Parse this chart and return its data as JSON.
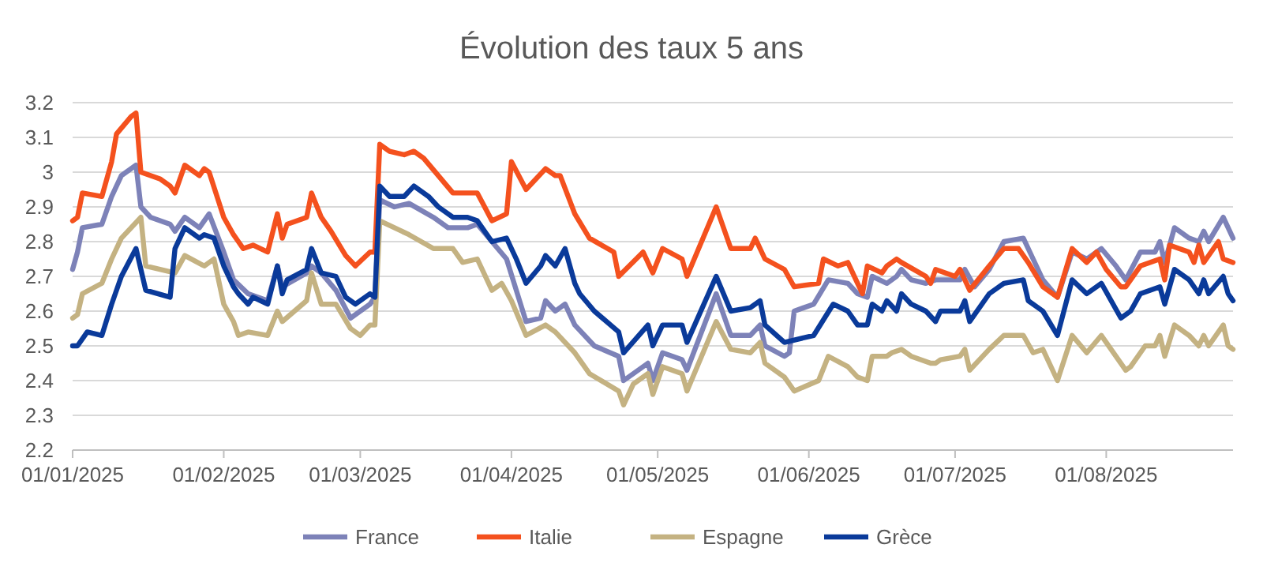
{
  "chart_data": {
    "type": "line",
    "title": "Évolution des taux 5 ans",
    "xlim": [
      "2025-01-01",
      "2025-08-27"
    ],
    "xticks": [
      {
        "value": "2025-01-01",
        "label": "01/01/2025"
      },
      {
        "value": "2025-02-01",
        "label": "01/02/2025"
      },
      {
        "value": "2025-03-01",
        "label": "01/03/2025"
      },
      {
        "value": "2025-04-01",
        "label": "01/04/2025"
      },
      {
        "value": "2025-05-01",
        "label": "01/05/2025"
      },
      {
        "value": "2025-06-01",
        "label": "01/06/2025"
      },
      {
        "value": "2025-07-01",
        "label": "01/07/2025"
      },
      {
        "value": "2025-08-01",
        "label": "01/08/2025"
      }
    ],
    "ylim": [
      2.2,
      3.2
    ],
    "yticks": [
      {
        "value": 2.2,
        "label": "2.2"
      },
      {
        "value": 2.3,
        "label": "2.3"
      },
      {
        "value": 2.4,
        "label": "2.4"
      },
      {
        "value": 2.5,
        "label": "2.5"
      },
      {
        "value": 2.6,
        "label": "2.6"
      },
      {
        "value": 2.7,
        "label": "2.7"
      },
      {
        "value": 2.8,
        "label": "2.8"
      },
      {
        "value": 2.9,
        "label": "2.9"
      },
      {
        "value": 3,
        "label": "3"
      },
      {
        "value": 3.1,
        "label": "3.1"
      },
      {
        "value": 3.2,
        "label": "3.2"
      }
    ],
    "grid": "y",
    "legend": "bottom",
    "marker": "none",
    "line_style": "solid",
    "series": [
      {
        "name": "France",
        "color": "#7d82b8",
        "x": [
          "2025-01-01",
          "2025-01-02",
          "2025-01-03",
          "2025-01-07",
          "2025-01-09",
          "2025-01-11",
          "2025-01-14",
          "2025-01-15",
          "2025-01-17",
          "2025-01-21",
          "2025-01-22",
          "2025-01-24",
          "2025-01-27",
          "2025-01-29",
          "2025-02-01",
          "2025-02-03",
          "2025-02-06",
          "2025-02-10",
          "2025-02-12",
          "2025-02-13",
          "2025-02-18",
          "2025-02-19",
          "2025-02-21",
          "2025-02-24",
          "2025-02-27",
          "2025-03-03",
          "2025-03-04",
          "2025-03-05",
          "2025-03-08",
          "2025-03-11",
          "2025-03-16",
          "2025-03-19",
          "2025-03-23",
          "2025-03-25",
          "2025-03-28",
          "2025-03-31",
          "2025-04-02",
          "2025-04-04",
          "2025-04-07",
          "2025-04-08",
          "2025-04-10",
          "2025-04-12",
          "2025-04-14",
          "2025-04-18",
          "2025-04-23",
          "2025-04-24",
          "2025-04-29",
          "2025-04-30",
          "2025-05-02",
          "2025-05-06",
          "2025-05-07",
          "2025-05-13",
          "2025-05-16",
          "2025-05-20",
          "2025-05-22",
          "2025-05-23",
          "2025-05-27",
          "2025-05-28",
          "2025-05-29",
          "2025-06-02",
          "2025-06-05",
          "2025-06-09",
          "2025-06-11",
          "2025-06-13",
          "2025-06-14",
          "2025-06-17",
          "2025-06-19",
          "2025-06-20",
          "2025-06-22",
          "2025-06-25",
          "2025-06-27",
          "2025-07-02",
          "2025-07-03",
          "2025-07-05",
          "2025-07-08",
          "2025-07-11",
          "2025-07-15",
          "2025-07-17",
          "2025-07-19",
          "2025-07-22",
          "2025-07-25",
          "2025-07-28",
          "2025-07-31",
          "2025-08-03",
          "2025-08-05",
          "2025-08-08",
          "2025-08-11",
          "2025-08-12",
          "2025-08-13",
          "2025-08-15",
          "2025-08-18",
          "2025-08-20",
          "2025-08-21",
          "2025-08-22",
          "2025-08-25",
          "2025-08-26",
          "2025-08-27"
        ],
        "values": [
          2.72,
          2.77,
          2.84,
          2.85,
          2.93,
          2.99,
          3.02,
          2.9,
          2.87,
          2.85,
          2.83,
          2.87,
          2.84,
          2.88,
          2.77,
          2.69,
          2.65,
          2.63,
          2.73,
          2.67,
          2.71,
          2.73,
          2.71,
          2.66,
          2.58,
          2.62,
          2.64,
          2.92,
          2.9,
          2.91,
          2.87,
          2.84,
          2.84,
          2.85,
          2.8,
          2.75,
          2.66,
          2.57,
          2.58,
          2.63,
          2.6,
          2.62,
          2.56,
          2.5,
          2.47,
          2.4,
          2.45,
          2.4,
          2.48,
          2.46,
          2.43,
          2.65,
          2.53,
          2.53,
          2.56,
          2.5,
          2.47,
          2.48,
          2.6,
          2.62,
          2.69,
          2.68,
          2.65,
          2.64,
          2.7,
          2.68,
          2.7,
          2.72,
          2.69,
          2.68,
          2.69,
          2.69,
          2.72,
          2.67,
          2.72,
          2.8,
          2.81,
          2.75,
          2.69,
          2.64,
          2.77,
          2.75,
          2.78,
          2.73,
          2.69,
          2.77,
          2.77,
          2.8,
          2.74,
          2.84,
          2.81,
          2.8,
          2.83,
          2.8,
          2.87,
          2.84,
          2.81
        ]
      },
      {
        "name": "Italie",
        "color": "#f4511e",
        "x": [
          "2025-01-01",
          "2025-01-02",
          "2025-01-03",
          "2025-01-07",
          "2025-01-09",
          "2025-01-10",
          "2025-01-13",
          "2025-01-14",
          "2025-01-15",
          "2025-01-19",
          "2025-01-21",
          "2025-01-22",
          "2025-01-24",
          "2025-01-27",
          "2025-01-28",
          "2025-01-29",
          "2025-02-01",
          "2025-02-03",
          "2025-02-04",
          "2025-02-05",
          "2025-02-07",
          "2025-02-10",
          "2025-02-12",
          "2025-02-13",
          "2025-02-14",
          "2025-02-18",
          "2025-02-19",
          "2025-02-21",
          "2025-02-23",
          "2025-02-26",
          "2025-02-28",
          "2025-03-03",
          "2025-03-04",
          "2025-03-05",
          "2025-03-07",
          "2025-03-10",
          "2025-03-12",
          "2025-03-14",
          "2025-03-17",
          "2025-03-20",
          "2025-03-25",
          "2025-03-28",
          "2025-03-31",
          "2025-04-01",
          "2025-04-04",
          "2025-04-08",
          "2025-04-10",
          "2025-04-11",
          "2025-04-14",
          "2025-04-17",
          "2025-04-22",
          "2025-04-23",
          "2025-04-28",
          "2025-04-30",
          "2025-05-02",
          "2025-05-06",
          "2025-05-07",
          "2025-05-13",
          "2025-05-16",
          "2025-05-20",
          "2025-05-21",
          "2025-05-23",
          "2025-05-27",
          "2025-05-29",
          "2025-06-03",
          "2025-06-04",
          "2025-06-07",
          "2025-06-09",
          "2025-06-11",
          "2025-06-12",
          "2025-06-13",
          "2025-06-16",
          "2025-06-17",
          "2025-06-19",
          "2025-06-20",
          "2025-06-25",
          "2025-06-26",
          "2025-06-27",
          "2025-07-01",
          "2025-07-02",
          "2025-07-04",
          "2025-07-08",
          "2025-07-11",
          "2025-07-14",
          "2025-07-16",
          "2025-07-19",
          "2025-07-22",
          "2025-07-25",
          "2025-07-28",
          "2025-07-30",
          "2025-08-01",
          "2025-08-04",
          "2025-08-05",
          "2025-08-08",
          "2025-08-12",
          "2025-08-13",
          "2025-08-14",
          "2025-08-18",
          "2025-08-19",
          "2025-08-20",
          "2025-08-21",
          "2025-08-24",
          "2025-08-25",
          "2025-08-27"
        ],
        "values": [
          2.86,
          2.87,
          2.94,
          2.93,
          3.03,
          3.11,
          3.16,
          3.17,
          3.0,
          2.98,
          2.96,
          2.94,
          3.02,
          2.99,
          3.01,
          3.0,
          2.87,
          2.82,
          2.8,
          2.78,
          2.79,
          2.77,
          2.88,
          2.81,
          2.85,
          2.87,
          2.94,
          2.87,
          2.83,
          2.76,
          2.73,
          2.77,
          2.77,
          3.08,
          3.06,
          3.05,
          3.06,
          3.04,
          2.99,
          2.94,
          2.94,
          2.86,
          2.88,
          3.03,
          2.95,
          3.01,
          2.99,
          2.99,
          2.88,
          2.81,
          2.77,
          2.7,
          2.77,
          2.71,
          2.78,
          2.75,
          2.7,
          2.9,
          2.78,
          2.78,
          2.81,
          2.75,
          2.72,
          2.67,
          2.68,
          2.75,
          2.73,
          2.74,
          2.68,
          2.65,
          2.73,
          2.71,
          2.73,
          2.75,
          2.74,
          2.7,
          2.68,
          2.72,
          2.7,
          2.72,
          2.66,
          2.73,
          2.78,
          2.78,
          2.74,
          2.67,
          2.64,
          2.78,
          2.74,
          2.77,
          2.72,
          2.67,
          2.67,
          2.73,
          2.75,
          2.69,
          2.79,
          2.77,
          2.74,
          2.79,
          2.74,
          2.8,
          2.75,
          2.74
        ]
      },
      {
        "name": "Espagne",
        "color": "#c4b282",
        "x": [
          "2025-01-01",
          "2025-01-02",
          "2025-01-03",
          "2025-01-07",
          "2025-01-09",
          "2025-01-11",
          "2025-01-15",
          "2025-01-16",
          "2025-01-22",
          "2025-01-24",
          "2025-01-28",
          "2025-01-30",
          "2025-02-01",
          "2025-02-03",
          "2025-02-04",
          "2025-02-06",
          "2025-02-10",
          "2025-02-12",
          "2025-02-13",
          "2025-02-18",
          "2025-02-19",
          "2025-02-21",
          "2025-02-24",
          "2025-02-27",
          "2025-03-01",
          "2025-03-03",
          "2025-03-04",
          "2025-03-05",
          "2025-03-08",
          "2025-03-11",
          "2025-03-16",
          "2025-03-20",
          "2025-03-22",
          "2025-03-25",
          "2025-03-28",
          "2025-03-30",
          "2025-04-01",
          "2025-04-04",
          "2025-04-08",
          "2025-04-10",
          "2025-04-14",
          "2025-04-17",
          "2025-04-23",
          "2025-04-24",
          "2025-04-26",
          "2025-04-29",
          "2025-04-30",
          "2025-05-02",
          "2025-05-06",
          "2025-05-07",
          "2025-05-13",
          "2025-05-16",
          "2025-05-20",
          "2025-05-22",
          "2025-05-23",
          "2025-05-27",
          "2025-05-29",
          "2025-06-03",
          "2025-06-05",
          "2025-06-09",
          "2025-06-11",
          "2025-06-13",
          "2025-06-14",
          "2025-06-17",
          "2025-06-18",
          "2025-06-20",
          "2025-06-22",
          "2025-06-26",
          "2025-06-27",
          "2025-06-28",
          "2025-07-02",
          "2025-07-03",
          "2025-07-04",
          "2025-07-08",
          "2025-07-11",
          "2025-07-15",
          "2025-07-17",
          "2025-07-19",
          "2025-07-22",
          "2025-07-25",
          "2025-07-28",
          "2025-07-31",
          "2025-08-05",
          "2025-08-06",
          "2025-08-09",
          "2025-08-11",
          "2025-08-12",
          "2025-08-13",
          "2025-08-15",
          "2025-08-18",
          "2025-08-20",
          "2025-08-21",
          "2025-08-22",
          "2025-08-25",
          "2025-08-26",
          "2025-08-27"
        ],
        "values": [
          2.58,
          2.59,
          2.65,
          2.68,
          2.75,
          2.81,
          2.87,
          2.73,
          2.71,
          2.76,
          2.73,
          2.75,
          2.62,
          2.57,
          2.53,
          2.54,
          2.53,
          2.6,
          2.57,
          2.63,
          2.71,
          2.62,
          2.62,
          2.55,
          2.53,
          2.56,
          2.56,
          2.86,
          2.84,
          2.82,
          2.78,
          2.78,
          2.74,
          2.75,
          2.66,
          2.68,
          2.63,
          2.53,
          2.56,
          2.54,
          2.48,
          2.42,
          2.37,
          2.33,
          2.39,
          2.42,
          2.36,
          2.44,
          2.42,
          2.37,
          2.57,
          2.49,
          2.48,
          2.51,
          2.45,
          2.41,
          2.37,
          2.4,
          2.47,
          2.44,
          2.41,
          2.4,
          2.47,
          2.47,
          2.48,
          2.49,
          2.47,
          2.45,
          2.45,
          2.46,
          2.47,
          2.49,
          2.43,
          2.49,
          2.53,
          2.53,
          2.48,
          2.49,
          2.4,
          2.53,
          2.48,
          2.53,
          2.43,
          2.44,
          2.5,
          2.5,
          2.53,
          2.47,
          2.56,
          2.53,
          2.5,
          2.53,
          2.5,
          2.56,
          2.5,
          2.49
        ]
      },
      {
        "name": "Grèce",
        "color": "#0a3a9a",
        "x": [
          "2025-01-01",
          "2025-01-02",
          "2025-01-04",
          "2025-01-07",
          "2025-01-09",
          "2025-01-11",
          "2025-01-14",
          "2025-01-16",
          "2025-01-21",
          "2025-01-22",
          "2025-01-24",
          "2025-01-27",
          "2025-01-28",
          "2025-01-30",
          "2025-02-01",
          "2025-02-03",
          "2025-02-04",
          "2025-02-06",
          "2025-02-07",
          "2025-02-10",
          "2025-02-12",
          "2025-02-13",
          "2025-02-14",
          "2025-02-18",
          "2025-02-19",
          "2025-02-21",
          "2025-02-24",
          "2025-02-26",
          "2025-02-28",
          "2025-03-03",
          "2025-03-04",
          "2025-03-05",
          "2025-03-07",
          "2025-03-10",
          "2025-03-12",
          "2025-03-15",
          "2025-03-17",
          "2025-03-20",
          "2025-03-23",
          "2025-03-25",
          "2025-03-28",
          "2025-03-31",
          "2025-04-02",
          "2025-04-04",
          "2025-04-07",
          "2025-04-08",
          "2025-04-10",
          "2025-04-12",
          "2025-04-14",
          "2025-04-15",
          "2025-04-18",
          "2025-04-23",
          "2025-04-24",
          "2025-04-29",
          "2025-04-30",
          "2025-05-02",
          "2025-05-06",
          "2025-05-07",
          "2025-05-13",
          "2025-05-16",
          "2025-05-20",
          "2025-05-22",
          "2025-05-23",
          "2025-05-27",
          "2025-06-02",
          "2025-06-06",
          "2025-06-09",
          "2025-06-11",
          "2025-06-13",
          "2025-06-14",
          "2025-06-16",
          "2025-06-17",
          "2025-06-19",
          "2025-06-20",
          "2025-06-22",
          "2025-06-25",
          "2025-06-27",
          "2025-06-28",
          "2025-07-02",
          "2025-07-03",
          "2025-07-04",
          "2025-07-08",
          "2025-07-11",
          "2025-07-15",
          "2025-07-16",
          "2025-07-19",
          "2025-07-22",
          "2025-07-25",
          "2025-07-28",
          "2025-07-31",
          "2025-08-04",
          "2025-08-06",
          "2025-08-08",
          "2025-08-12",
          "2025-08-13",
          "2025-08-15",
          "2025-08-18",
          "2025-08-20",
          "2025-08-21",
          "2025-08-22",
          "2025-08-25",
          "2025-08-26",
          "2025-08-27"
        ],
        "values": [
          2.5,
          2.5,
          2.54,
          2.53,
          2.62,
          2.7,
          2.78,
          2.66,
          2.64,
          2.78,
          2.84,
          2.81,
          2.82,
          2.81,
          2.73,
          2.67,
          2.65,
          2.62,
          2.64,
          2.62,
          2.73,
          2.65,
          2.69,
          2.72,
          2.78,
          2.71,
          2.7,
          2.64,
          2.62,
          2.65,
          2.64,
          2.96,
          2.93,
          2.93,
          2.96,
          2.93,
          2.9,
          2.87,
          2.87,
          2.86,
          2.8,
          2.81,
          2.75,
          2.68,
          2.73,
          2.76,
          2.73,
          2.78,
          2.68,
          2.65,
          2.6,
          2.54,
          2.48,
          2.56,
          2.5,
          2.56,
          2.56,
          2.51,
          2.7,
          2.6,
          2.61,
          2.63,
          2.56,
          2.51,
          2.53,
          2.62,
          2.6,
          2.56,
          2.56,
          2.62,
          2.6,
          2.63,
          2.6,
          2.65,
          2.62,
          2.6,
          2.57,
          2.6,
          2.6,
          2.63,
          2.57,
          2.65,
          2.68,
          2.69,
          2.63,
          2.6,
          2.53,
          2.69,
          2.65,
          2.68,
          2.58,
          2.6,
          2.65,
          2.67,
          2.62,
          2.72,
          2.69,
          2.65,
          2.69,
          2.65,
          2.7,
          2.65,
          2.63
        ]
      }
    ]
  }
}
